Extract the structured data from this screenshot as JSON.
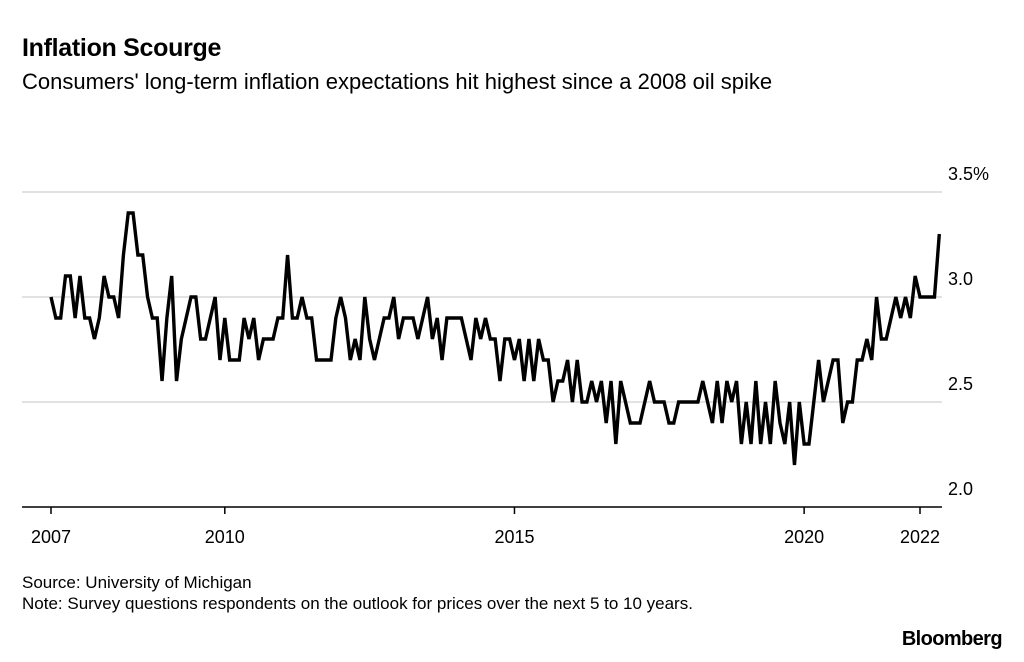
{
  "header": {
    "title": "Inflation Scourge",
    "subtitle": "Consumers' long-term inflation expectations hit highest since a 2008 oil spike"
  },
  "footer": {
    "source": "Source: University of Michigan",
    "note": "Note: Survey questions respondents on the outlook for prices over the next 5 to 10 years.",
    "brand": "Bloomberg"
  },
  "colors": {
    "line": "#000000",
    "grid": "#d9d9d9",
    "axis": "#000000"
  },
  "chart_data": {
    "type": "line",
    "title": "Inflation Scourge",
    "subtitle": "Consumers' long-term inflation expectations hit highest since a 2008 oil spike",
    "xlabel": "",
    "ylabel": "",
    "ylim": [
      2.0,
      3.5
    ],
    "xlim": [
      2007.0,
      2022.5
    ],
    "y_axis_side": "right",
    "y_ticks": [
      {
        "value": 3.5,
        "label": "3.5%"
      },
      {
        "value": 3.0,
        "label": "3.0"
      },
      {
        "value": 2.5,
        "label": "2.5"
      },
      {
        "value": 2.0,
        "label": "2.0"
      }
    ],
    "x_ticks": [
      {
        "value": 2007,
        "label": "2007"
      },
      {
        "value": 2010,
        "label": "2010"
      },
      {
        "value": 2015,
        "label": "2015"
      },
      {
        "value": 2020,
        "label": "2020"
      },
      {
        "value": 2022,
        "label": "2022"
      }
    ],
    "grid": true,
    "series": [
      {
        "start": "2007-01",
        "frequency": "monthly",
        "values": [
          3.0,
          2.9,
          2.9,
          3.1,
          3.1,
          2.9,
          3.1,
          2.9,
          2.9,
          2.8,
          2.9,
          3.1,
          3.0,
          3.0,
          2.9,
          3.2,
          3.4,
          3.4,
          3.2,
          3.2,
          3.0,
          2.9,
          2.9,
          2.6,
          2.9,
          3.1,
          2.6,
          2.8,
          2.9,
          3.0,
          3.0,
          2.8,
          2.8,
          2.9,
          3.0,
          2.7,
          2.9,
          2.7,
          2.7,
          2.7,
          2.9,
          2.8,
          2.9,
          2.7,
          2.8,
          2.8,
          2.8,
          2.9,
          2.9,
          3.2,
          2.9,
          2.9,
          3.0,
          2.9,
          2.9,
          2.7,
          2.7,
          2.7,
          2.7,
          2.9,
          3.0,
          2.9,
          2.7,
          2.8,
          2.7,
          3.0,
          2.8,
          2.7,
          2.8,
          2.9,
          2.9,
          3.0,
          2.8,
          2.9,
          2.9,
          2.9,
          2.8,
          2.9,
          3.0,
          2.8,
          2.9,
          2.7,
          2.9,
          2.9,
          2.9,
          2.9,
          2.8,
          2.7,
          2.9,
          2.8,
          2.9,
          2.8,
          2.8,
          2.6,
          2.8,
          2.8,
          2.7,
          2.8,
          2.6,
          2.8,
          2.6,
          2.8,
          2.7,
          2.7,
          2.5,
          2.6,
          2.6,
          2.7,
          2.5,
          2.7,
          2.5,
          2.5,
          2.6,
          2.5,
          2.6,
          2.4,
          2.6,
          2.3,
          2.6,
          2.5,
          2.4,
          2.4,
          2.4,
          2.5,
          2.6,
          2.5,
          2.5,
          2.5,
          2.4,
          2.4,
          2.5,
          2.5,
          2.5,
          2.5,
          2.5,
          2.6,
          2.5,
          2.4,
          2.6,
          2.4,
          2.6,
          2.5,
          2.6,
          2.3,
          2.5,
          2.3,
          2.6,
          2.3,
          2.5,
          2.3,
          2.6,
          2.4,
          2.3,
          2.5,
          2.2,
          2.5,
          2.3,
          2.3,
          2.5,
          2.7,
          2.5,
          2.6,
          2.7,
          2.7,
          2.4,
          2.5,
          2.5,
          2.7,
          2.7,
          2.8,
          2.7,
          3.0,
          2.8,
          2.8,
          2.9,
          3.0,
          2.9,
          3.0,
          2.9,
          3.1,
          3.0,
          3.0,
          3.0,
          3.0,
          3.3
        ]
      }
    ]
  }
}
